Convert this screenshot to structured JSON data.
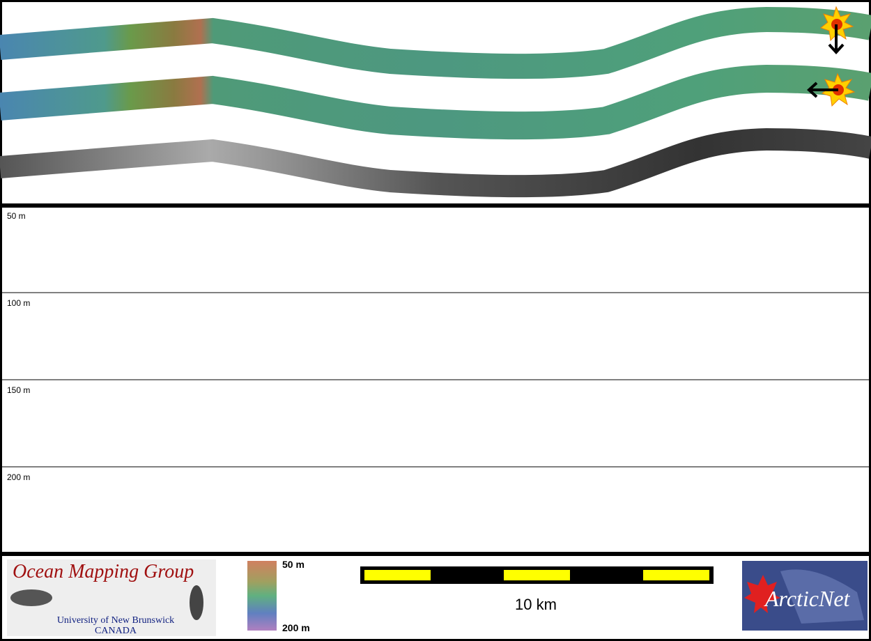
{
  "profile": {
    "depth_labels": [
      "50 m",
      "100 m",
      "150 m",
      "200 m"
    ]
  },
  "footer": {
    "logo_left": {
      "title": "Ocean Mapping Group",
      "subtitle": "University of New Brunswick",
      "country": "CANADA"
    },
    "colorbar": {
      "top_label": "50 m",
      "bottom_label": "200 m"
    },
    "scale_bar": {
      "label": "10 km"
    },
    "logo_right": {
      "title": "ArcticNet"
    }
  }
}
